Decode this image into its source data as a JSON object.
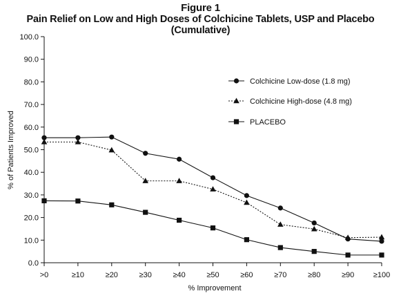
{
  "figure_label": "Figure 1",
  "title": "Pain Relief on Low and High Doses of Colchicine Tablets, USP and Placebo (Cumulative)",
  "chart_data": {
    "type": "line",
    "title": "Pain Relief on Low and High Doses of Colchicine Tablets, USP and Placebo (Cumulative)",
    "xlabel": "% Improvement",
    "ylabel": "% of Patients Improved",
    "categories": [
      ">0",
      "≥10",
      "≥20",
      "≥30",
      "≥40",
      "≥50",
      "≥60",
      "≥70",
      "≥80",
      "≥90",
      "≥100"
    ],
    "ylim": [
      0,
      100
    ],
    "yticks": [
      "0.0",
      "10.0",
      "20.0",
      "30.0",
      "40.0",
      "50.0",
      "60.0",
      "70.0",
      "80.0",
      "90.0",
      "100.0"
    ],
    "grid": false,
    "legend_position": "right",
    "series": [
      {
        "name": "Colchicine Low-dose (1.8 mg)",
        "marker": "circle",
        "line_style": "solid",
        "color": "#111111",
        "values": [
          55.3,
          55.3,
          55.6,
          48.4,
          45.8,
          37.6,
          29.7,
          24.2,
          17.6,
          10.5,
          9.5
        ]
      },
      {
        "name": "Colchicine High-dose (4.8 mg)",
        "marker": "triangle",
        "line_style": "dotted",
        "color": "#111111",
        "values": [
          53.4,
          53.4,
          49.8,
          36.2,
          36.2,
          32.5,
          26.6,
          16.9,
          14.9,
          11.1,
          11.3
        ]
      },
      {
        "name": "PLACEBO",
        "marker": "square",
        "line_style": "solid",
        "color": "#111111",
        "values": [
          27.4,
          27.3,
          25.6,
          22.3,
          18.8,
          15.4,
          10.2,
          6.7,
          5.0,
          3.4,
          3.4
        ]
      }
    ]
  }
}
